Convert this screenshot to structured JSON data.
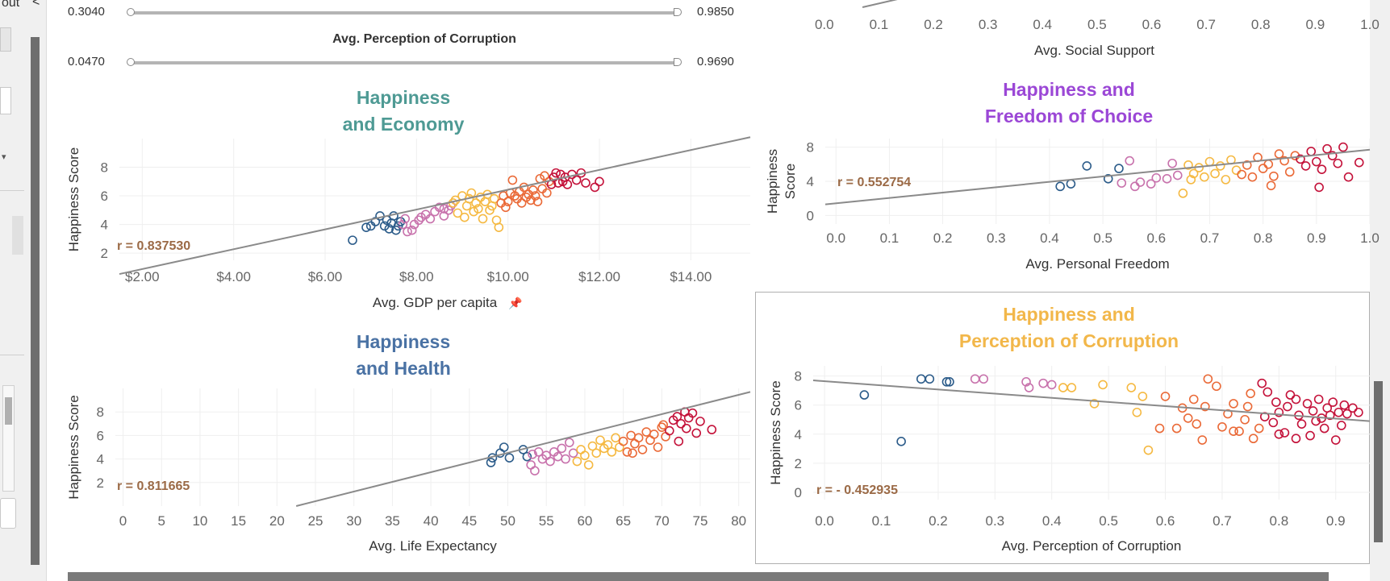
{
  "window": {
    "left_fragment": "out",
    "left_chevron": "<"
  },
  "filters": [
    {
      "min": "0.3040",
      "max": "0.9850"
    },
    {
      "label": "Avg. Perception of Corruption",
      "min": "0.0470",
      "max": "0.9690"
    }
  ],
  "colors": {
    "economy": "#4e9a94",
    "health": "#4a72a4",
    "freedom": "#9b47d6",
    "corruption": "#f2b74a",
    "r_label": "#9b6a46",
    "trend": "#8a8a8a",
    "scale": [
      "#2c5c8a",
      "#c872ac",
      "#f5b942",
      "#ea6a38",
      "#c4123a"
    ]
  },
  "chart_data": [
    {
      "id": "economy",
      "type": "scatter",
      "title": "Happiness and Economy",
      "title_lines": [
        "Happiness",
        "and Economy"
      ],
      "xlabel": "Avg. GDP per capita",
      "ylabel": "Happiness Score",
      "xlim": [
        1.5,
        15.3
      ],
      "ylim": [
        1.5,
        10
      ],
      "xticks": [
        2,
        4,
        6,
        8,
        10,
        12,
        14
      ],
      "xtick_labels": [
        "$2.00",
        "$4.00",
        "$6.00",
        "$8.00",
        "$10.00",
        "$12.00",
        "$14.00"
      ],
      "yticks": [
        2,
        4,
        6,
        8
      ],
      "ytick_labels": [
        "2",
        "4",
        "6",
        "8"
      ],
      "r_label": "r = 0.837530",
      "trend": [
        [
          1.5,
          0.54
        ],
        [
          15.3,
          10.1
        ]
      ],
      "grid": true,
      "points": [
        [
          6.6,
          2.9
        ],
        [
          6.9,
          3.8
        ],
        [
          7.0,
          3.9
        ],
        [
          7.1,
          4.2
        ],
        [
          7.2,
          4.6
        ],
        [
          7.3,
          3.9
        ],
        [
          7.35,
          4.3
        ],
        [
          7.4,
          3.7
        ],
        [
          7.45,
          4.1
        ],
        [
          7.5,
          4.6
        ],
        [
          7.55,
          3.6
        ],
        [
          7.6,
          3.9
        ],
        [
          7.7,
          4.0
        ],
        [
          7.65,
          4.2
        ],
        [
          7.75,
          4.4
        ],
        [
          7.8,
          3.5
        ],
        [
          7.9,
          3.6
        ],
        [
          7.95,
          4.0
        ],
        [
          8.05,
          4.3
        ],
        [
          8.1,
          4.5
        ],
        [
          8.2,
          4.7
        ],
        [
          8.3,
          4.4
        ],
        [
          8.4,
          4.9
        ],
        [
          8.5,
          5.2
        ],
        [
          8.6,
          4.6
        ],
        [
          8.7,
          5.0
        ],
        [
          8.75,
          5.3
        ],
        [
          8.8,
          5.5
        ],
        [
          8.6,
          5.1
        ],
        [
          8.9,
          4.8
        ],
        [
          8.85,
          5.7
        ],
        [
          9.0,
          6.0
        ],
        [
          9.05,
          4.5
        ],
        [
          9.1,
          5.3
        ],
        [
          9.15,
          5.8
        ],
        [
          9.2,
          6.2
        ],
        [
          9.25,
          4.9
        ],
        [
          9.3,
          5.5
        ],
        [
          9.35,
          5.1
        ],
        [
          9.4,
          5.9
        ],
        [
          9.45,
          4.4
        ],
        [
          9.5,
          5.6
        ],
        [
          9.55,
          6.1
        ],
        [
          9.6,
          5.0
        ],
        [
          9.65,
          5.3
        ],
        [
          9.7,
          5.8
        ],
        [
          9.75,
          4.3
        ],
        [
          9.8,
          3.8
        ],
        [
          9.85,
          5.5
        ],
        [
          9.9,
          6.0
        ],
        [
          9.95,
          5.2
        ],
        [
          10.0,
          5.6
        ],
        [
          10.05,
          6.2
        ],
        [
          10.1,
          7.1
        ],
        [
          10.15,
          6.0
        ],
        [
          10.2,
          5.8
        ],
        [
          10.25,
          6.3
        ],
        [
          10.3,
          5.5
        ],
        [
          10.35,
          6.6
        ],
        [
          10.4,
          5.9
        ],
        [
          10.45,
          6.1
        ],
        [
          10.5,
          5.7
        ],
        [
          10.55,
          6.4
        ],
        [
          10.6,
          6.0
        ],
        [
          10.65,
          5.6
        ],
        [
          10.7,
          7.2
        ],
        [
          10.75,
          6.5
        ],
        [
          10.8,
          7.4
        ],
        [
          10.85,
          6.2
        ],
        [
          10.9,
          7.0
        ],
        [
          10.95,
          6.8
        ],
        [
          11.0,
          7.3
        ],
        [
          11.05,
          7.6
        ],
        [
          11.1,
          6.9
        ],
        [
          11.15,
          7.5
        ],
        [
          11.2,
          7.0
        ],
        [
          11.25,
          7.3
        ],
        [
          11.3,
          6.8
        ],
        [
          11.4,
          7.5
        ],
        [
          11.5,
          7.1
        ],
        [
          11.6,
          7.6
        ],
        [
          11.7,
          6.9
        ],
        [
          11.9,
          6.6
        ],
        [
          12.0,
          7.0
        ]
      ]
    },
    {
      "id": "health",
      "type": "scatter",
      "title": "Happiness and Health",
      "title_lines": [
        "Happiness",
        "and Health"
      ],
      "xlabel": "Avg. Life Expectancy",
      "ylabel": "Happiness Score",
      "xlim": [
        -1,
        81.5
      ],
      "ylim": [
        0,
        10
      ],
      "xticks": [
        0,
        5,
        10,
        15,
        20,
        25,
        30,
        35,
        40,
        45,
        50,
        55,
        60,
        65,
        70,
        75,
        80
      ],
      "xtick_labels": [
        "0",
        "5",
        "10",
        "15",
        "20",
        "25",
        "30",
        "35",
        "40",
        "45",
        "50",
        "55",
        "60",
        "65",
        "70",
        "75",
        "80"
      ],
      "yticks": [
        2,
        4,
        6,
        8
      ],
      "ytick_labels": [
        "2",
        "4",
        "6",
        "8"
      ],
      "r_label": "r = 0.811665",
      "trend": [
        [
          22.5,
          0.0
        ],
        [
          81.5,
          9.7
        ]
      ],
      "grid": true,
      "points": [
        [
          47.8,
          3.7
        ],
        [
          48.0,
          4.1
        ],
        [
          49.0,
          4.5
        ],
        [
          49.5,
          5.0
        ],
        [
          50.2,
          4.1
        ],
        [
          52.0,
          4.8
        ],
        [
          52.5,
          4.2
        ],
        [
          53.0,
          3.5
        ],
        [
          53.2,
          4.4
        ],
        [
          53.5,
          3.0
        ],
        [
          54.0,
          4.6
        ],
        [
          54.5,
          4.0
        ],
        [
          55.0,
          4.3
        ],
        [
          55.5,
          3.8
        ],
        [
          56.0,
          4.6
        ],
        [
          56.5,
          4.2
        ],
        [
          57.0,
          4.9
        ],
        [
          57.5,
          4.0
        ],
        [
          58.0,
          5.4
        ],
        [
          58.5,
          4.5
        ],
        [
          59.0,
          3.8
        ],
        [
          59.5,
          4.8
        ],
        [
          60.0,
          4.3
        ],
        [
          60.5,
          3.5
        ],
        [
          61.0,
          5.1
        ],
        [
          61.5,
          4.5
        ],
        [
          62.0,
          5.6
        ],
        [
          62.5,
          4.9
        ],
        [
          63.0,
          5.2
        ],
        [
          63.5,
          4.6
        ],
        [
          64.0,
          5.8
        ],
        [
          64.5,
          5.0
        ],
        [
          65.0,
          5.5
        ],
        [
          65.5,
          4.6
        ],
        [
          66.0,
          6.0
        ],
        [
          66.5,
          5.3
        ],
        [
          67.0,
          5.8
        ],
        [
          67.5,
          4.8
        ],
        [
          68.0,
          6.3
        ],
        [
          68.5,
          5.6
        ],
        [
          69.0,
          6.1
        ],
        [
          69.5,
          5.0
        ],
        [
          70.0,
          6.7
        ],
        [
          70.5,
          5.9
        ],
        [
          71.0,
          6.4
        ],
        [
          71.5,
          7.3
        ],
        [
          72.0,
          7.6
        ],
        [
          72.5,
          7.0
        ],
        [
          73.0,
          8.0
        ],
        [
          73.2,
          6.6
        ],
        [
          73.5,
          7.5
        ],
        [
          74.0,
          7.9
        ],
        [
          74.5,
          6.2
        ],
        [
          75.0,
          7.2
        ],
        [
          76.5,
          6.5
        ],
        [
          72.2,
          5.5
        ],
        [
          70.2,
          6.9
        ],
        [
          66.2,
          4.5
        ]
      ]
    },
    {
      "id": "support",
      "type": "scatter",
      "xlabel": "Avg. Social Support",
      "xlim": [
        -0.01,
        1.0
      ],
      "xticks": [
        0.0,
        0.1,
        0.2,
        0.3,
        0.4,
        0.5,
        0.6,
        0.7,
        0.8,
        0.9,
        1.0
      ],
      "xtick_labels": [
        "0.0",
        "0.1",
        "0.2",
        "0.3",
        "0.4",
        "0.5",
        "0.6",
        "0.7",
        "0.8",
        "0.9",
        "1.0"
      ],
      "trend": [
        [
          0.07,
          0.0
        ],
        [
          0.16,
          1.0
        ]
      ],
      "points": []
    },
    {
      "id": "freedom",
      "type": "scatter",
      "title": "Happiness and Freedom of Choice",
      "title_lines": [
        "Happiness and",
        "Freedom of Choice"
      ],
      "xlabel": "Avg. Personal Freedom",
      "ylabel": "Happiness Score",
      "xlim": [
        -0.02,
        1.0
      ],
      "ylim": [
        -1,
        9
      ],
      "xticks": [
        0.0,
        0.1,
        0.2,
        0.3,
        0.4,
        0.5,
        0.6,
        0.7,
        0.8,
        0.9,
        1.0
      ],
      "xtick_labels": [
        "0.0",
        "0.1",
        "0.2",
        "0.3",
        "0.4",
        "0.5",
        "0.6",
        "0.7",
        "0.8",
        "0.9",
        "1.0"
      ],
      "yticks": [
        0,
        4,
        8
      ],
      "ytick_labels": [
        "0",
        "4",
        "8"
      ],
      "r_label": "r = 0.552754",
      "trend": [
        [
          -0.02,
          1.3
        ],
        [
          1.0,
          7.7
        ]
      ],
      "grid": true,
      "points": [
        [
          0.42,
          3.4
        ],
        [
          0.44,
          3.7
        ],
        [
          0.47,
          5.8
        ],
        [
          0.51,
          4.3
        ],
        [
          0.53,
          5.5
        ],
        [
          0.535,
          3.8
        ],
        [
          0.55,
          6.4
        ],
        [
          0.56,
          3.4
        ],
        [
          0.57,
          3.9
        ],
        [
          0.59,
          3.7
        ],
        [
          0.6,
          4.4
        ],
        [
          0.62,
          4.3
        ],
        [
          0.63,
          6.1
        ],
        [
          0.64,
          4.7
        ],
        [
          0.65,
          2.6
        ],
        [
          0.66,
          5.9
        ],
        [
          0.67,
          4.9
        ],
        [
          0.68,
          5.6
        ],
        [
          0.69,
          4.5
        ],
        [
          0.7,
          6.3
        ],
        [
          0.71,
          4.9
        ],
        [
          0.72,
          5.8
        ],
        [
          0.73,
          4.2
        ],
        [
          0.74,
          6.5
        ],
        [
          0.75,
          5.3
        ],
        [
          0.76,
          4.8
        ],
        [
          0.77,
          5.9
        ],
        [
          0.78,
          4.5
        ],
        [
          0.79,
          6.8
        ],
        [
          0.8,
          5.5
        ],
        [
          0.81,
          6.0
        ],
        [
          0.82,
          4.6
        ],
        [
          0.83,
          7.2
        ],
        [
          0.84,
          6.4
        ],
        [
          0.85,
          5.1
        ],
        [
          0.86,
          7.0
        ],
        [
          0.87,
          6.6
        ],
        [
          0.88,
          5.8
        ],
        [
          0.89,
          7.5
        ],
        [
          0.9,
          6.3
        ],
        [
          0.91,
          5.4
        ],
        [
          0.92,
          7.8
        ],
        [
          0.93,
          7.0
        ],
        [
          0.94,
          6.1
        ],
        [
          0.95,
          8.0
        ],
        [
          0.96,
          4.5
        ],
        [
          0.98,
          6.2
        ],
        [
          0.905,
          3.3
        ],
        [
          0.815,
          3.5
        ],
        [
          0.665,
          4.2
        ]
      ]
    },
    {
      "id": "corruption",
      "type": "scatter",
      "title": "Happiness and Perception of Corruption",
      "title_lines": [
        "Happiness and",
        "Perception of Corruption"
      ],
      "xlabel": "Avg. Perception of Corruption",
      "ylabel": "Happiness Score",
      "xlim": [
        -0.02,
        0.96
      ],
      "ylim": [
        -0.5,
        8.7
      ],
      "xticks": [
        0.0,
        0.1,
        0.2,
        0.3,
        0.4,
        0.5,
        0.6,
        0.7,
        0.8,
        0.9
      ],
      "xtick_labels": [
        "0.0",
        "0.1",
        "0.2",
        "0.3",
        "0.4",
        "0.5",
        "0.6",
        "0.7",
        "0.8",
        "0.9"
      ],
      "yticks": [
        0,
        2,
        4,
        6,
        8
      ],
      "ytick_labels": [
        "0",
        "2",
        "4",
        "6",
        "8"
      ],
      "r_label": "r = - 0.452935",
      "trend": [
        [
          -0.02,
          7.7
        ],
        [
          0.96,
          4.9
        ]
      ],
      "grid": true,
      "points": [
        [
          0.07,
          6.7
        ],
        [
          0.135,
          3.5
        ],
        [
          0.17,
          7.8
        ],
        [
          0.185,
          7.8
        ],
        [
          0.215,
          7.6
        ],
        [
          0.22,
          7.6
        ],
        [
          0.265,
          7.8
        ],
        [
          0.28,
          7.8
        ],
        [
          0.355,
          7.6
        ],
        [
          0.36,
          7.2
        ],
        [
          0.385,
          7.5
        ],
        [
          0.4,
          7.4
        ],
        [
          0.42,
          7.2
        ],
        [
          0.435,
          7.2
        ],
        [
          0.475,
          6.1
        ],
        [
          0.49,
          7.4
        ],
        [
          0.54,
          7.2
        ],
        [
          0.55,
          5.5
        ],
        [
          0.56,
          6.6
        ],
        [
          0.57,
          2.9
        ],
        [
          0.59,
          4.4
        ],
        [
          0.6,
          6.6
        ],
        [
          0.62,
          4.4
        ],
        [
          0.63,
          5.8
        ],
        [
          0.64,
          5.1
        ],
        [
          0.65,
          6.4
        ],
        [
          0.655,
          4.7
        ],
        [
          0.665,
          3.6
        ],
        [
          0.67,
          5.9
        ],
        [
          0.675,
          7.8
        ],
        [
          0.69,
          7.3
        ],
        [
          0.7,
          4.5
        ],
        [
          0.71,
          5.4
        ],
        [
          0.72,
          6.1
        ],
        [
          0.73,
          4.2
        ],
        [
          0.74,
          5.0
        ],
        [
          0.745,
          5.9
        ],
        [
          0.75,
          6.8
        ],
        [
          0.755,
          3.7
        ],
        [
          0.765,
          4.4
        ],
        [
          0.77,
          7.5
        ],
        [
          0.775,
          5.2
        ],
        [
          0.78,
          6.9
        ],
        [
          0.79,
          4.8
        ],
        [
          0.795,
          6.2
        ],
        [
          0.8,
          5.5
        ],
        [
          0.81,
          4.1
        ],
        [
          0.815,
          5.9
        ],
        [
          0.82,
          6.7
        ],
        [
          0.83,
          3.7
        ],
        [
          0.835,
          5.3
        ],
        [
          0.84,
          4.7
        ],
        [
          0.85,
          6.1
        ],
        [
          0.855,
          3.9
        ],
        [
          0.86,
          5.6
        ],
        [
          0.865,
          4.9
        ],
        [
          0.87,
          6.4
        ],
        [
          0.875,
          5.1
        ],
        [
          0.88,
          4.4
        ],
        [
          0.885,
          5.8
        ],
        [
          0.89,
          5.3
        ],
        [
          0.895,
          6.2
        ],
        [
          0.9,
          3.6
        ],
        [
          0.905,
          5.5
        ],
        [
          0.91,
          4.6
        ],
        [
          0.915,
          6.0
        ],
        [
          0.92,
          5.4
        ],
        [
          0.93,
          5.8
        ],
        [
          0.94,
          5.5
        ],
        [
          0.8,
          4.0
        ],
        [
          0.83,
          6.4
        ],
        [
          0.72,
          4.2
        ]
      ]
    }
  ]
}
